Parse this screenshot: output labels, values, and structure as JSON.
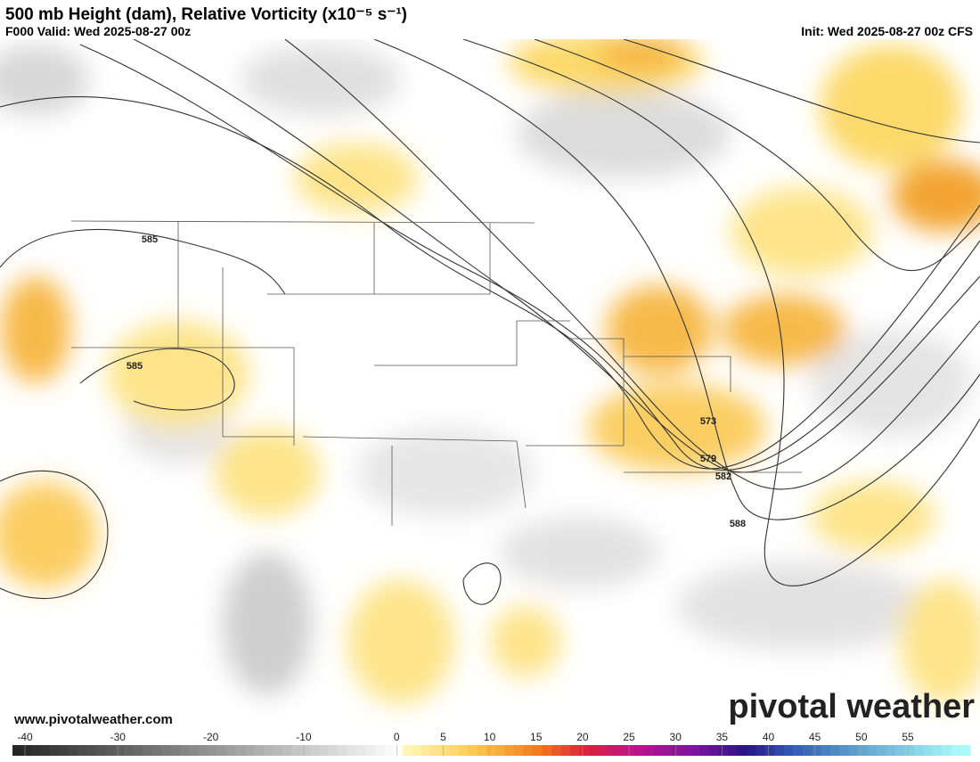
{
  "header": {
    "title": "500 mb Height (dam), Relative Vorticity (x10⁻⁵ s⁻¹)",
    "valid": "F000 Valid: Wed 2025-08-27 00z",
    "init": "Init: Wed 2025-08-27 00z CFS"
  },
  "map": {
    "contour_labels": [
      "585",
      "585",
      "573",
      "579",
      "582",
      "588"
    ],
    "url": "www.pivotalweather.com",
    "logo": "pivotal weather"
  },
  "colorbar": {
    "ticks": [
      -40,
      -30,
      -20,
      -10,
      0,
      5,
      10,
      15,
      20,
      25,
      30,
      35,
      40,
      45,
      50,
      55
    ]
  }
}
